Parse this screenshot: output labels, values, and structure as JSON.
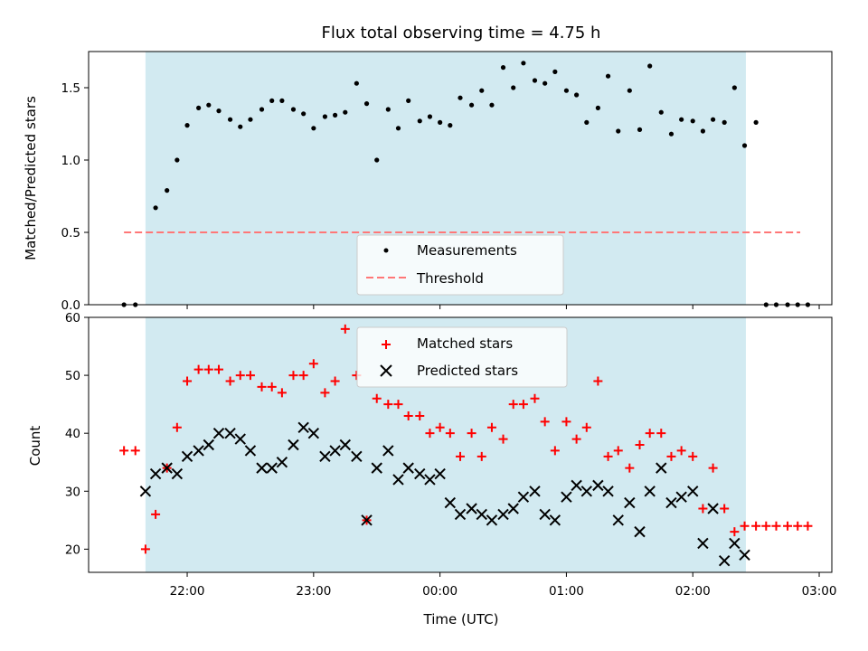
{
  "chart_data": [
    {
      "type": "scatter",
      "title": "Flux total observing time = 4.75 h",
      "ylabel": "Matched/Predicted stars",
      "xlabel": "",
      "x_unit": "hours since 00:00 UTC",
      "ylim": [
        0.0,
        1.75
      ],
      "yticks": [
        0.0,
        0.5,
        1.0,
        1.5
      ],
      "shaded_interval": [
        -2.33,
        2.42
      ],
      "shade_color": "#add8e6",
      "legend": {
        "position": "bottom-center",
        "entries": [
          "Measurements",
          "Threshold"
        ]
      },
      "threshold": {
        "name": "Threshold",
        "value": 0.5,
        "x_range": [
          -2.5,
          2.85
        ],
        "color": "#ff7777",
        "style": "dashed"
      },
      "series": [
        {
          "name": "Measurements",
          "marker": "dot",
          "color": "#000000",
          "points": [
            [
              -2.5,
              0.0
            ],
            [
              -2.41,
              0.0
            ],
            [
              -2.25,
              0.67
            ],
            [
              -2.16,
              0.79
            ],
            [
              -2.08,
              1.0
            ],
            [
              -2.0,
              1.24
            ],
            [
              -1.91,
              1.36
            ],
            [
              -1.83,
              1.38
            ],
            [
              -1.75,
              1.34
            ],
            [
              -1.66,
              1.28
            ],
            [
              -1.58,
              1.23
            ],
            [
              -1.5,
              1.28
            ],
            [
              -1.41,
              1.35
            ],
            [
              -1.33,
              1.41
            ],
            [
              -1.25,
              1.41
            ],
            [
              -1.16,
              1.35
            ],
            [
              -1.08,
              1.32
            ],
            [
              -1.0,
              1.22
            ],
            [
              -0.91,
              1.3
            ],
            [
              -0.83,
              1.31
            ],
            [
              -0.75,
              1.33
            ],
            [
              -0.66,
              1.53
            ],
            [
              -0.58,
              1.39
            ],
            [
              -0.5,
              1.0
            ],
            [
              -0.41,
              1.35
            ],
            [
              -0.33,
              1.22
            ],
            [
              -0.25,
              1.41
            ],
            [
              -0.16,
              1.27
            ],
            [
              -0.08,
              1.3
            ],
            [
              0.0,
              1.26
            ],
            [
              0.08,
              1.24
            ],
            [
              0.16,
              1.43
            ],
            [
              0.25,
              1.38
            ],
            [
              0.33,
              1.48
            ],
            [
              0.41,
              1.38
            ],
            [
              0.5,
              1.64
            ],
            [
              0.58,
              1.5
            ],
            [
              0.66,
              1.67
            ],
            [
              0.75,
              1.55
            ],
            [
              0.83,
              1.53
            ],
            [
              0.91,
              1.61
            ],
            [
              1.0,
              1.48
            ],
            [
              1.08,
              1.45
            ],
            [
              1.16,
              1.26
            ],
            [
              1.25,
              1.36
            ],
            [
              1.33,
              1.58
            ],
            [
              1.41,
              1.2
            ],
            [
              1.5,
              1.48
            ],
            [
              1.58,
              1.21
            ],
            [
              1.66,
              1.65
            ],
            [
              1.75,
              1.33
            ],
            [
              1.83,
              1.18
            ],
            [
              1.91,
              1.28
            ],
            [
              2.0,
              1.27
            ],
            [
              2.08,
              1.2
            ],
            [
              2.16,
              1.28
            ],
            [
              2.25,
              1.26
            ],
            [
              2.33,
              1.5
            ],
            [
              2.41,
              1.1
            ],
            [
              2.5,
              1.26
            ],
            [
              2.58,
              0.0
            ],
            [
              2.66,
              0.0
            ],
            [
              2.75,
              0.0
            ],
            [
              2.83,
              0.0
            ],
            [
              2.91,
              0.0
            ]
          ]
        }
      ]
    },
    {
      "type": "scatter",
      "title": "",
      "xlabel": "Time (UTC)",
      "ylabel": "Count",
      "x_unit": "hours since 00:00 UTC",
      "ylim": [
        16,
        60
      ],
      "yticks": [
        20,
        30,
        40,
        50,
        60
      ],
      "xlim": [
        -2.78,
        3.1
      ],
      "xticks": [
        -2,
        -1,
        0,
        1,
        2,
        3
      ],
      "xtick_labels": [
        "22:00",
        "23:00",
        "00:00",
        "01:00",
        "02:00",
        "03:00"
      ],
      "shaded_interval": [
        -2.33,
        2.42
      ],
      "shade_color": "#add8e6",
      "legend": {
        "position": "top-center",
        "entries": [
          "Matched stars",
          "Predicted stars"
        ]
      },
      "series": [
        {
          "name": "Matched stars",
          "marker": "plus",
          "color": "#ff0000",
          "points": [
            [
              -2.5,
              37
            ],
            [
              -2.41,
              37
            ],
            [
              -2.33,
              20
            ],
            [
              -2.25,
              26
            ],
            [
              -2.16,
              34
            ],
            [
              -2.08,
              41
            ],
            [
              -2.0,
              49
            ],
            [
              -1.91,
              51
            ],
            [
              -1.83,
              51
            ],
            [
              -1.75,
              51
            ],
            [
              -1.66,
              49
            ],
            [
              -1.58,
              50
            ],
            [
              -1.5,
              50
            ],
            [
              -1.41,
              48
            ],
            [
              -1.33,
              48
            ],
            [
              -1.25,
              47
            ],
            [
              -1.16,
              50
            ],
            [
              -1.08,
              50
            ],
            [
              -1.0,
              52
            ],
            [
              -0.91,
              47
            ],
            [
              -0.83,
              49
            ],
            [
              -0.75,
              58
            ],
            [
              -0.66,
              50
            ],
            [
              -0.58,
              25
            ],
            [
              -0.5,
              46
            ],
            [
              -0.41,
              45
            ],
            [
              -0.33,
              45
            ],
            [
              -0.25,
              43
            ],
            [
              -0.16,
              43
            ],
            [
              -0.08,
              40
            ],
            [
              0.0,
              41
            ],
            [
              0.08,
              40
            ],
            [
              0.16,
              36
            ],
            [
              0.25,
              40
            ],
            [
              0.33,
              36
            ],
            [
              0.41,
              41
            ],
            [
              0.5,
              39
            ],
            [
              0.58,
              45
            ],
            [
              0.66,
              45
            ],
            [
              0.75,
              46
            ],
            [
              0.83,
              42
            ],
            [
              0.91,
              37
            ],
            [
              1.0,
              42
            ],
            [
              1.08,
              39
            ],
            [
              1.16,
              41
            ],
            [
              1.25,
              49
            ],
            [
              1.33,
              36
            ],
            [
              1.41,
              37
            ],
            [
              1.5,
              34
            ],
            [
              1.58,
              38
            ],
            [
              1.66,
              40
            ],
            [
              1.75,
              40
            ],
            [
              1.83,
              36
            ],
            [
              1.91,
              37
            ],
            [
              2.0,
              36
            ],
            [
              2.08,
              27
            ],
            [
              2.16,
              34
            ],
            [
              2.25,
              27
            ],
            [
              2.33,
              23
            ],
            [
              2.41,
              24
            ],
            [
              2.5,
              24
            ],
            [
              2.58,
              24
            ],
            [
              2.66,
              24
            ],
            [
              2.75,
              24
            ],
            [
              2.83,
              24
            ],
            [
              2.91,
              24
            ]
          ]
        },
        {
          "name": "Predicted stars",
          "marker": "x",
          "color": "#000000",
          "points": [
            [
              -2.33,
              30
            ],
            [
              -2.25,
              33
            ],
            [
              -2.16,
              34
            ],
            [
              -2.08,
              33
            ],
            [
              -2.0,
              36
            ],
            [
              -1.91,
              37
            ],
            [
              -1.83,
              38
            ],
            [
              -1.75,
              40
            ],
            [
              -1.66,
              40
            ],
            [
              -1.58,
              39
            ],
            [
              -1.5,
              37
            ],
            [
              -1.41,
              34
            ],
            [
              -1.33,
              34
            ],
            [
              -1.25,
              35
            ],
            [
              -1.16,
              38
            ],
            [
              -1.08,
              41
            ],
            [
              -1.0,
              40
            ],
            [
              -0.91,
              36
            ],
            [
              -0.83,
              37
            ],
            [
              -0.75,
              38
            ],
            [
              -0.66,
              36
            ],
            [
              -0.58,
              25
            ],
            [
              -0.5,
              34
            ],
            [
              -0.41,
              37
            ],
            [
              -0.33,
              32
            ],
            [
              -0.25,
              34
            ],
            [
              -0.16,
              33
            ],
            [
              -0.08,
              32
            ],
            [
              0.0,
              33
            ],
            [
              0.08,
              28
            ],
            [
              0.16,
              26
            ],
            [
              0.25,
              27
            ],
            [
              0.33,
              26
            ],
            [
              0.41,
              25
            ],
            [
              0.5,
              26
            ],
            [
              0.58,
              27
            ],
            [
              0.66,
              29
            ],
            [
              0.75,
              30
            ],
            [
              0.83,
              26
            ],
            [
              0.91,
              25
            ],
            [
              1.0,
              29
            ],
            [
              1.08,
              31
            ],
            [
              1.16,
              30
            ],
            [
              1.25,
              31
            ],
            [
              1.33,
              30
            ],
            [
              1.41,
              25
            ],
            [
              1.5,
              28
            ],
            [
              1.58,
              23
            ],
            [
              1.66,
              30
            ],
            [
              1.75,
              34
            ],
            [
              1.83,
              28
            ],
            [
              1.91,
              29
            ],
            [
              2.0,
              30
            ],
            [
              2.08,
              21
            ],
            [
              2.16,
              27
            ],
            [
              2.25,
              18
            ],
            [
              2.33,
              21
            ],
            [
              2.41,
              19
            ]
          ]
        }
      ]
    }
  ]
}
